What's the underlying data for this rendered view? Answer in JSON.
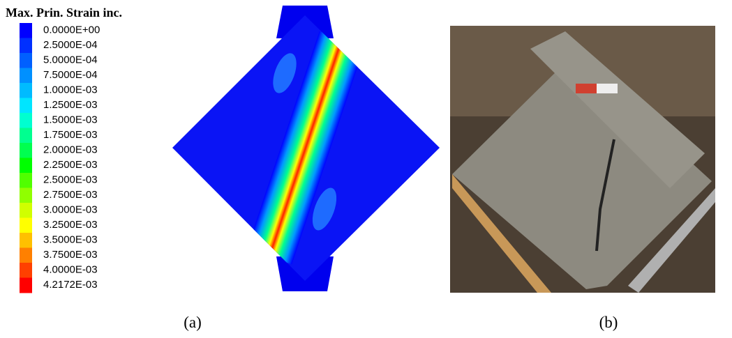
{
  "legend": {
    "title": "Max. Prin. Strain inc.",
    "entries": [
      {
        "label": "0.0000E+00",
        "color": "#0000FF"
      },
      {
        "label": "2.5000E-04",
        "color": "#0030FF"
      },
      {
        "label": "5.0000E-04",
        "color": "#0060FF"
      },
      {
        "label": "7.5000E-04",
        "color": "#0090FF"
      },
      {
        "label": "1.0000E-03",
        "color": "#00BBFF"
      },
      {
        "label": "1.2500E-03",
        "color": "#00E5FF"
      },
      {
        "label": "1.5000E-03",
        "color": "#00FFD0"
      },
      {
        "label": "1.7500E-03",
        "color": "#00FF90"
      },
      {
        "label": "2.0000E-03",
        "color": "#00FF50"
      },
      {
        "label": "2.2500E-03",
        "color": "#00FF00"
      },
      {
        "label": "2.5000E-03",
        "color": "#50FF00"
      },
      {
        "label": "2.7500E-03",
        "color": "#90FF00"
      },
      {
        "label": "3.0000E-03",
        "color": "#D0FF00"
      },
      {
        "label": "3.2500E-03",
        "color": "#FFFF00"
      },
      {
        "label": "3.5000E-03",
        "color": "#FFC000"
      },
      {
        "label": "3.7500E-03",
        "color": "#FF8000"
      },
      {
        "label": "4.0000E-03",
        "color": "#FF4000"
      },
      {
        "label": "4.2172E-03",
        "color": "#FF0000"
      }
    ]
  },
  "captions": [
    "(a)",
    "(b)"
  ]
}
